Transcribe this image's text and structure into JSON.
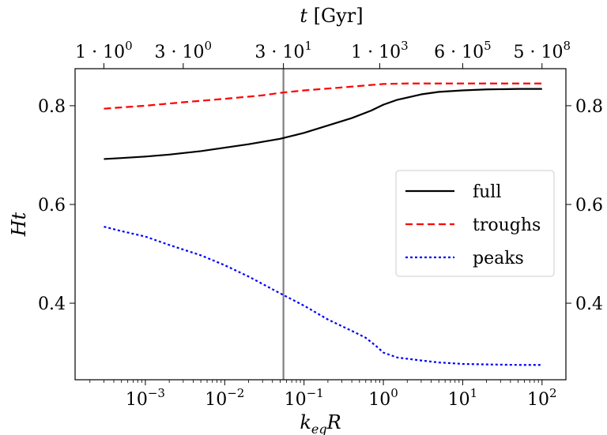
{
  "chart_data": {
    "type": "line",
    "xscale": "log",
    "xlabel": "k_eq R",
    "ylabel": "Ht",
    "top_xlabel": "t [Gyr]",
    "xlim": [
      0.00013,
      200
    ],
    "ylim": [
      0.245,
      0.875
    ],
    "x_ticks": [
      {
        "value": 0.001,
        "base": "10",
        "exp": "−3"
      },
      {
        "value": 0.01,
        "base": "10",
        "exp": "−2"
      },
      {
        "value": 0.1,
        "base": "10",
        "exp": "−1"
      },
      {
        "value": 1,
        "base": "10",
        "exp": "0"
      },
      {
        "value": 10,
        "base": "10",
        "exp": "1"
      },
      {
        "value": 100,
        "base": "10",
        "exp": "2"
      }
    ],
    "top_ticks": [
      {
        "at": 0.0003,
        "coef": "1 · 10",
        "exp": "0"
      },
      {
        "at": 0.003,
        "coef": "3 · 10",
        "exp": "0"
      },
      {
        "at": 0.055,
        "coef": "3 · 10",
        "exp": "1"
      },
      {
        "at": 0.9,
        "coef": "1 · 10",
        "exp": "3"
      },
      {
        "at": 10,
        "coef": "6 · 10",
        "exp": "5"
      },
      {
        "at": 100,
        "coef": "5 · 10",
        "exp": "8"
      }
    ],
    "y_ticks": [
      {
        "value": 0.4,
        "label": "0.4"
      },
      {
        "value": 0.6,
        "label": "0.6"
      },
      {
        "value": 0.8,
        "label": "0.8"
      }
    ],
    "vline_x": 0.055,
    "legend_position": "center-right",
    "series": [
      {
        "name": "full",
        "color": "#000000",
        "dash": "solid",
        "x": [
          0.0003,
          0.0005,
          0.001,
          0.002,
          0.005,
          0.01,
          0.02,
          0.05,
          0.1,
          0.2,
          0.4,
          0.7,
          1.0,
          1.5,
          3,
          5,
          10,
          20,
          50,
          100
        ],
        "y": [
          0.692,
          0.694,
          0.697,
          0.701,
          0.708,
          0.715,
          0.722,
          0.733,
          0.745,
          0.76,
          0.775,
          0.79,
          0.802,
          0.812,
          0.823,
          0.828,
          0.831,
          0.833,
          0.834,
          0.834
        ]
      },
      {
        "name": "troughs",
        "color": "#ff0000",
        "dash": "dashed",
        "x": [
          0.0003,
          0.001,
          0.003,
          0.01,
          0.03,
          0.05,
          0.1,
          0.3,
          0.7,
          1.0,
          2,
          5,
          10,
          100
        ],
        "y": [
          0.794,
          0.8,
          0.807,
          0.814,
          0.821,
          0.826,
          0.831,
          0.837,
          0.842,
          0.844,
          0.845,
          0.845,
          0.845,
          0.845
        ]
      },
      {
        "name": "peaks",
        "color": "#0000ff",
        "dash": "dotted",
        "x": [
          0.0003,
          0.0005,
          0.001,
          0.002,
          0.005,
          0.01,
          0.02,
          0.05,
          0.1,
          0.2,
          0.4,
          0.6,
          0.8,
          1.0,
          1.5,
          3,
          5,
          10,
          20,
          50,
          100
        ],
        "y": [
          0.555,
          0.546,
          0.535,
          0.518,
          0.497,
          0.477,
          0.454,
          0.42,
          0.395,
          0.367,
          0.344,
          0.33,
          0.314,
          0.3,
          0.29,
          0.284,
          0.28,
          0.277,
          0.276,
          0.275,
          0.275
        ]
      }
    ]
  }
}
